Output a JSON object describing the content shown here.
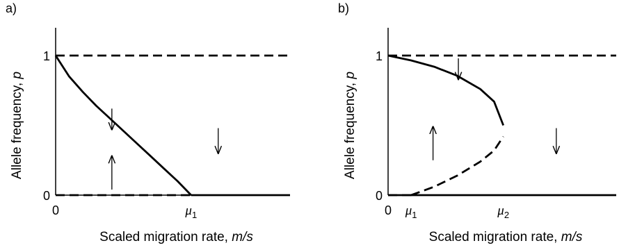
{
  "chart_data": [
    {
      "type": "line",
      "panel_label": "a)",
      "xlabel": "Scaled migration rate, ",
      "xlabel_italic": "m/s",
      "ylabel": "Allele frequency, ",
      "ylabel_italic": "p",
      "x_ticks": [
        {
          "x": 0,
          "label": "0"
        },
        {
          "x": 1,
          "label": "μ",
          "sub": "1"
        }
      ],
      "y_ticks": [
        {
          "y": 0,
          "label": "0"
        },
        {
          "y": 1,
          "label": "1"
        }
      ],
      "xlim": [
        0,
        1.73
      ],
      "ylim": [
        0,
        1.17
      ],
      "series": [
        {
          "style": "dashed",
          "points": [
            [
              0,
              1
            ],
            [
              1.73,
              1
            ]
          ]
        },
        {
          "style": "dashed",
          "points": [
            [
              0,
              0
            ],
            [
              1,
              0
            ]
          ]
        },
        {
          "style": "solid",
          "points": [
            [
              0,
              1
            ],
            [
              0.1,
              0.85
            ],
            [
              0.2,
              0.74
            ],
            [
              0.3,
              0.64
            ],
            [
              0.4,
              0.55
            ],
            [
              0.5,
              0.46
            ],
            [
              0.6,
              0.37
            ],
            [
              0.7,
              0.28
            ],
            [
              0.8,
              0.19
            ],
            [
              0.9,
              0.1
            ],
            [
              1,
              0
            ]
          ]
        },
        {
          "style": "solid",
          "points": [
            [
              1,
              0
            ],
            [
              1.73,
              0
            ]
          ]
        }
      ],
      "arrows": [
        {
          "x": 0.415,
          "y_from": 0.62,
          "y_to": 0.47,
          "direction": "down"
        },
        {
          "x": 0.415,
          "y_from": 0.04,
          "y_to": 0.28,
          "direction": "up"
        },
        {
          "x": 1.2,
          "y_from": 0.48,
          "y_to": 0.3,
          "direction": "down"
        }
      ]
    },
    {
      "type": "line",
      "panel_label": "b)",
      "xlabel": "Scaled migration rate, ",
      "xlabel_italic": "m/s",
      "ylabel": "Allele frequency, ",
      "ylabel_italic": "p",
      "x_ticks": [
        {
          "x": 0,
          "label": "0"
        },
        {
          "x": 1,
          "label": "μ",
          "sub": "1"
        },
        {
          "x": 5,
          "label": "μ",
          "sub": "2"
        }
      ],
      "y_ticks": [
        {
          "y": 0,
          "label": "0"
        },
        {
          "y": 1,
          "label": "1"
        }
      ],
      "xlim": [
        0,
        9.9
      ],
      "ylim": [
        0,
        1.17
      ],
      "series": [
        {
          "style": "dashed",
          "points": [
            [
              0,
              1
            ],
            [
              9.9,
              1
            ]
          ]
        },
        {
          "style": "solid",
          "points": [
            [
              0,
              0
            ],
            [
              9.9,
              0
            ]
          ]
        },
        {
          "style": "dashed",
          "points": [
            [
              0,
              0
            ],
            [
              1,
              0
            ]
          ]
        },
        {
          "style": "solid",
          "points": [
            [
              0,
              1
            ],
            [
              1,
              0.965
            ],
            [
              2,
              0.92
            ],
            [
              3,
              0.855
            ],
            [
              4,
              0.76
            ],
            [
              4.6,
              0.67
            ],
            [
              5,
              0.5
            ]
          ]
        },
        {
          "style": "dashed",
          "points": [
            [
              1,
              0
            ],
            [
              2,
              0.06
            ],
            [
              3,
              0.14
            ],
            [
              4,
              0.24
            ],
            [
              4.6,
              0.32
            ],
            [
              5,
              0.42
            ]
          ]
        }
      ],
      "arrows": [
        {
          "x": 3.05,
          "y_from": 0.98,
          "y_to": 0.83,
          "direction": "down"
        },
        {
          "x": 1.95,
          "y_from": 0.25,
          "y_to": 0.49,
          "direction": "up"
        },
        {
          "x": 7.3,
          "y_from": 0.48,
          "y_to": 0.3,
          "direction": "down"
        }
      ]
    }
  ]
}
